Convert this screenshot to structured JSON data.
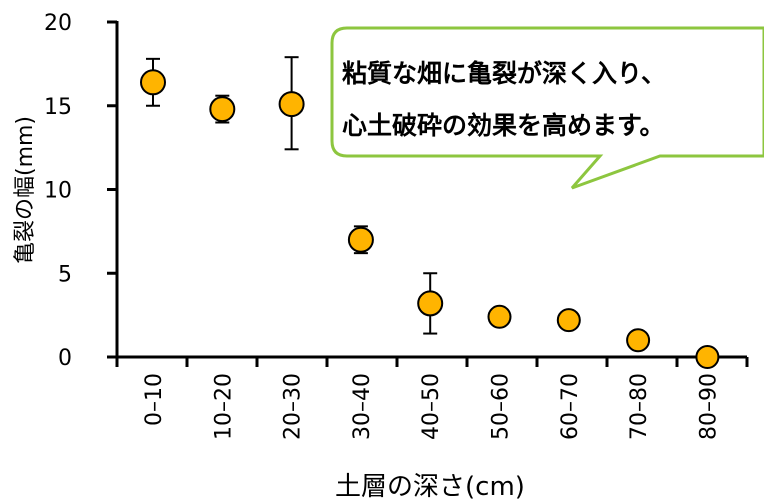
{
  "chart_data": {
    "type": "scatter",
    "title": "",
    "xlabel": "土層の深さ(cm)",
    "ylabel": "亀裂の幅(mm)",
    "ylim": [
      0,
      20
    ],
    "yticks": [
      "0",
      "5",
      "10",
      "15",
      "20"
    ],
    "categories": [
      "0–10",
      "10–20",
      "20–30",
      "30–40",
      "40–50",
      "50–60",
      "60–70",
      "70–80",
      "80–90"
    ],
    "series": [
      {
        "values": [
          16.4,
          14.8,
          15.1,
          7.0,
          3.2,
          2.4,
          2.2,
          1.0,
          0.0
        ],
        "error_low": [
          15.0,
          14.0,
          12.4,
          6.2,
          1.4,
          null,
          null,
          null,
          null
        ],
        "error_high": [
          17.8,
          15.6,
          17.9,
          7.8,
          5.0,
          null,
          null,
          null,
          null
        ],
        "color": "#FFB400"
      }
    ],
    "grid": false,
    "annotation": {
      "lines": [
        "粘質な畑に亀裂が深く入り、",
        "心土破砕の効果を高めます。"
      ],
      "border_color": "#8DC63F"
    }
  }
}
